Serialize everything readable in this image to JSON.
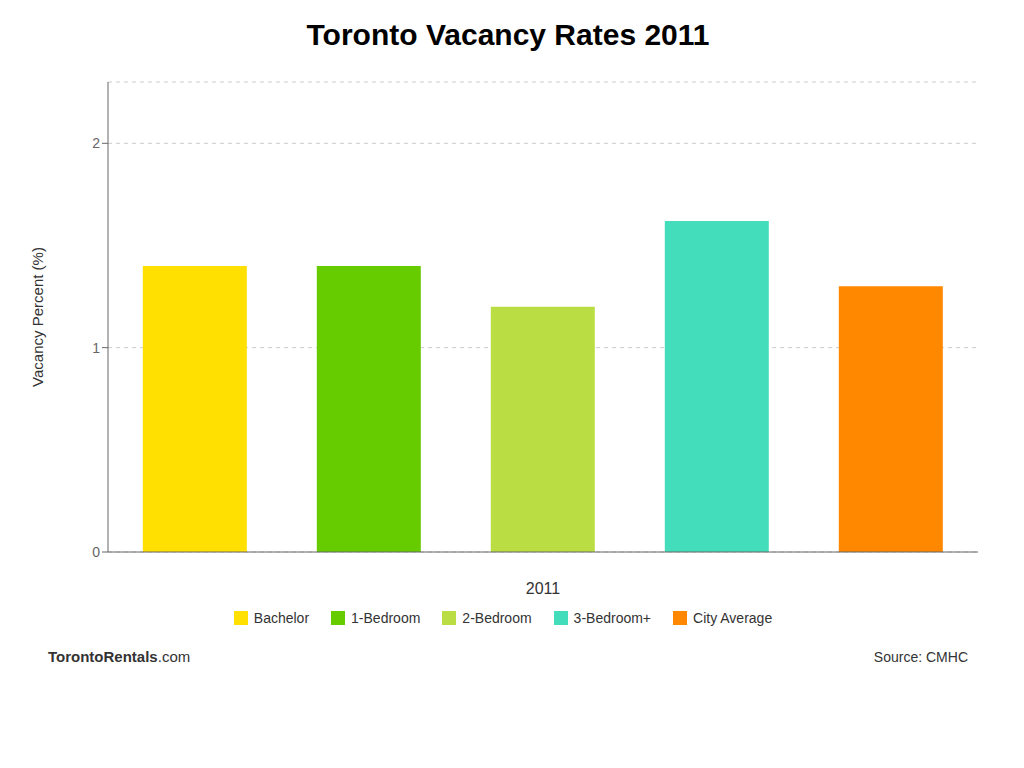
{
  "chart_data": {
    "type": "bar",
    "title": "Toronto Vacancy Rates 2011",
    "categories": [
      "Bachelor",
      "1-Bedroom",
      "2-Bedroom",
      "3-Bedroom+",
      "City Average"
    ],
    "values": [
      1.4,
      1.4,
      1.2,
      1.62,
      1.3
    ],
    "colors": [
      "#FFE000",
      "#66CC00",
      "#BBDD44",
      "#44DDBB",
      "#FF8800"
    ],
    "xlabel": "2011",
    "ylabel": "Vacancy Percent (%)",
    "ylim": [
      0,
      2.3
    ],
    "yticks": [
      0,
      1,
      2
    ],
    "grid": true,
    "legend": "bottom",
    "tick_labels": "y",
    "annotations": [
      "TorontoRentals",
      ".com",
      "Source: CMHC"
    ]
  }
}
